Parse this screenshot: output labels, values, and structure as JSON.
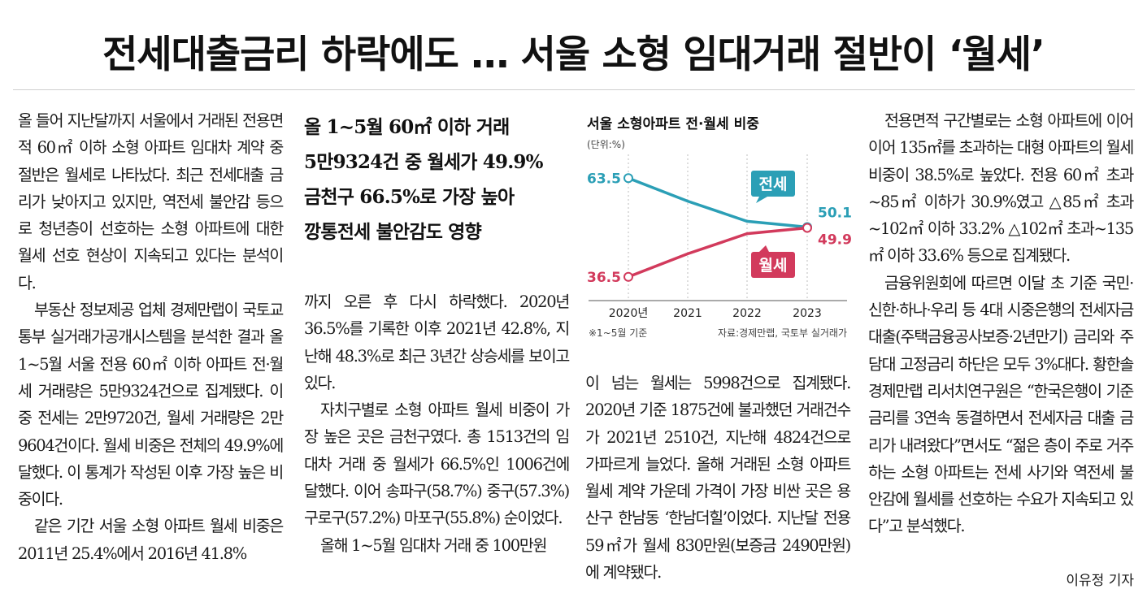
{
  "article": {
    "headline": "전세대출금리 하락에도 … 서울 소형 임대거래 절반이 ‘월세’",
    "subheads": [
      "올 1~5월 60㎡ 이하 거래",
      "5만9324건 중 월세가 49.9%",
      "금천구 66.5%로 가장 높아",
      "깡통전세 불안감도 영향"
    ],
    "col1": [
      "올 들어 지난달까지 서울에서 거래된 전용면적 60㎡ 이하 소형 아파트 임대차 계약 중 절반은 월세로 나타났다. 최근 전세대출 금리가 낮아지고 있지만, 역전세 불안감 등으로 청년층이 선호하는 소형 아파트에 대한 월세 선호 현상이 지속되고 있다는 분석이다.",
      "부동산 정보제공 업체 경제만랩이 국토교통부 실거래가공개시스템을 분석한 결과 올 1~5월 서울 전용 60㎡ 이하 아파트 전·월세 거래량은 5만9324건으로 집계됐다. 이 중 전세는 2만9720건, 월세 거래량은 2만9604건이다. 월세 비중은 전체의 49.9%에 달했다. 이 통계가 작성된 이후 가장 높은 비중이다.",
      "같은 기간 서울 소형 아파트 월세 비중은 2011년 25.4%에서 2016년 41.8%"
    ],
    "col2": [
      "까지 오른 후 다시 하락했다. 2020년 36.5%를 기록한 이후 2021년 42.8%, 지난해 48.3%로 최근 3년간 상승세를 보이고 있다.",
      "자치구별로 소형 아파트 월세 비중이 가장 높은 곳은 금천구였다. 총 1513건의 임대차 거래 중 월세가 66.5%인 1006건에 달했다. 이어 송파구(58.7%) 중구(57.3%) 구로구(57.2%) 마포구(55.8%) 순이었다.",
      "올해 1~5월 임대차 거래 중 100만원"
    ],
    "col3": [
      "이 넘는 월세는 5998건으로 집계됐다. 2020년 기준 1875건에 불과했던 거래건수가 2021년 2510건, 지난해 4824건으로 가파르게 늘었다. 올해 거래된 소형 아파트 월세 계약 가운데 가격이 가장 비싼 곳은 용산구 한남동 ‘한남더힐’이었다. 지난달 전용 59㎡가 월세 830만원(보증금 2490만원)에 계약됐다."
    ],
    "col4": [
      "전용면적 구간별로는 소형 아파트에 이어 이어 135㎡를 초과하는 대형 아파트의 월세 비중이 38.5%로 높았다. 전용 60㎡ 초과~85㎡ 이하가 30.9%였고 △85㎡ 초과~102㎡ 이하 33.2% △102㎡ 초과~135㎡ 이하 33.6% 등으로 집계됐다.",
      "금융위원회에 따르면 이달 초 기준 국민·신한·하나·우리 등 4대 시중은행의 전세자금대출(주택금융공사보증·2년만기) 금리와 주담대 고정금리 하단은 모두 3%대다. 황한솔 경제만랩 리서치연구원은 “한국은행이 기준금리를 3연속 동결하면서 전세자금 대출 금리가 내려왔다”면서도 “젊은 층이 주로 거주하는 소형 아파트는 전세 사기와 역전세 불안감에 월세를 선호하는 수요가 지속되고 있다”고 분석했다."
    ],
    "byline": "이유정 기자"
  },
  "chart_data": {
    "type": "line",
    "title": "서울 소형아파트 전·월세 비중",
    "unit_label": "(단위:%)",
    "x": [
      "2020년",
      "2021",
      "2022",
      "2023"
    ],
    "series": [
      {
        "name": "전세",
        "color": "#2b9fb6",
        "values": [
          63.5,
          57.2,
          51.7,
          50.1
        ]
      },
      {
        "name": "월세",
        "color": "#d23a5c",
        "values": [
          36.5,
          42.8,
          48.3,
          49.9
        ]
      }
    ],
    "point_labels": {
      "start": [
        "63.5",
        "36.5"
      ],
      "end": [
        "50.1",
        "49.9"
      ]
    },
    "ylim": [
      30,
      70
    ],
    "footnote_left": "※1~5월 기준",
    "footnote_right": "자료:경제만랩, 국토부 실거래가"
  }
}
